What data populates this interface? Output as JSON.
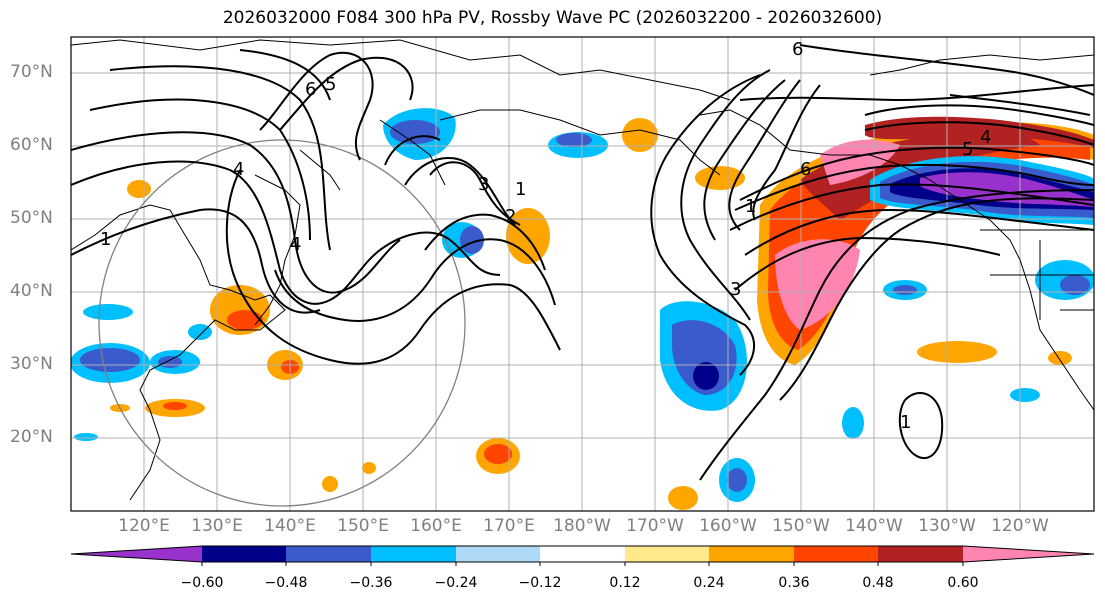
{
  "title": "2026032000 F084 300 hPa PV, Rossby Wave PC (2026032200 - 2026032600)",
  "map": {
    "region": "North Pacific",
    "projection": "PlateCarree",
    "lon_range_deg": [
      110,
      250
    ],
    "lat_range_deg": [
      10,
      75
    ],
    "lat_labels": [
      "70°N",
      "60°N",
      "50°N",
      "40°N",
      "30°N",
      "20°N"
    ],
    "lon_labels": [
      "120°E",
      "130°E",
      "140°E",
      "150°E",
      "160°E",
      "170°E",
      "180°W",
      "170°W",
      "160°W",
      "150°W",
      "140°W",
      "130°W",
      "120°W"
    ],
    "contour_labels": [
      "6",
      "5",
      "4",
      "4",
      "1",
      "1",
      "3",
      "2",
      "6",
      "5",
      "4",
      "3",
      "1",
      "6",
      "1"
    ],
    "colorbar": {
      "extend": "both",
      "tick_labels": [
        "−0.60",
        "−0.48",
        "−0.36",
        "−0.24",
        "−0.12",
        "0.12",
        "0.24",
        "0.36",
        "0.48",
        "0.60"
      ],
      "colors": [
        "#9932CC",
        "#00008B",
        "#3A5BCC",
        "#00BFFF",
        "#ADD8F6",
        "#FFFFFF",
        "#FFE98A",
        "#FFA500",
        "#FF4500",
        "#B22222",
        "#FF85B0"
      ]
    }
  }
}
